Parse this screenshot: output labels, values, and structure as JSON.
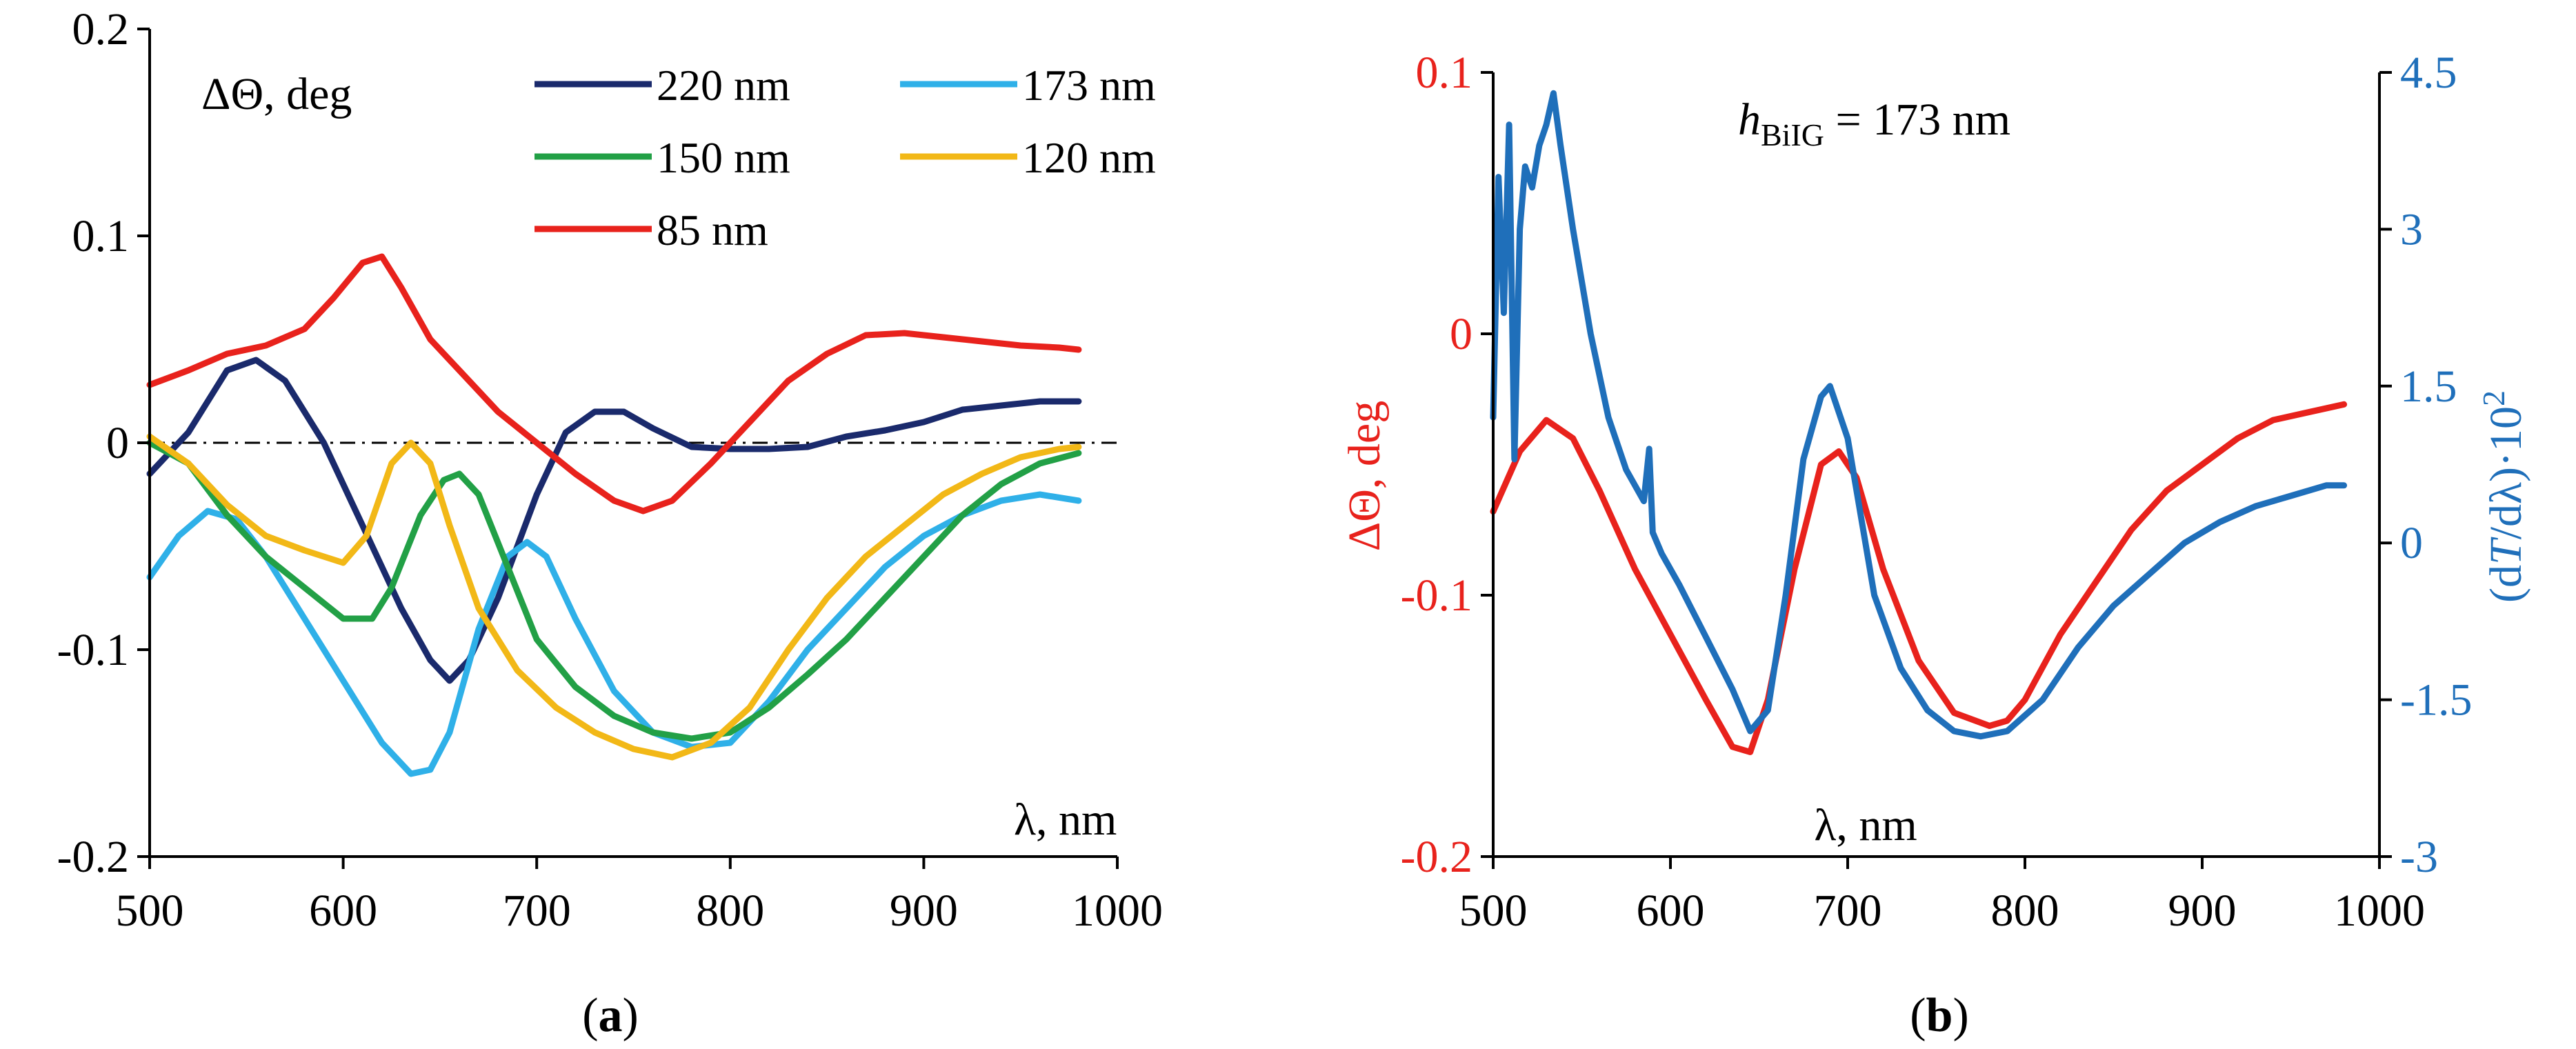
{
  "chart_data": [
    {
      "type": "line",
      "panel": "a",
      "caption_letter": "a",
      "ylabel": "ΔΘ, deg",
      "xlabel": "λ, nm",
      "xlim": [
        500,
        1000
      ],
      "ylim": [
        -0.2,
        0.2
      ],
      "xticks": [
        "500",
        "600",
        "700",
        "800",
        "900",
        "1000"
      ],
      "xtick_values": [
        500,
        600,
        700,
        800,
        900,
        1000
      ],
      "yticks": [
        "0.2",
        "0.1",
        "0",
        "-0.1",
        "-0.2"
      ],
      "ytick_values": [
        0.2,
        0.1,
        0,
        -0.1,
        -0.2
      ],
      "zero_line": true,
      "series": [
        {
          "name": "220 nm",
          "color": "#1a2a6c",
          "x": [
            500,
            520,
            540,
            555,
            570,
            590,
            610,
            630,
            645,
            655,
            665,
            680,
            700,
            715,
            730,
            745,
            760,
            780,
            800,
            820,
            840,
            860,
            880,
            900,
            920,
            940,
            960,
            980
          ],
          "y": [
            -0.015,
            0.005,
            0.035,
            0.04,
            0.03,
            0.0,
            -0.04,
            -0.08,
            -0.105,
            -0.115,
            -0.105,
            -0.075,
            -0.025,
            0.005,
            0.015,
            0.015,
            0.007,
            -0.002,
            -0.003,
            -0.003,
            -0.002,
            0.003,
            0.006,
            0.01,
            0.016,
            0.018,
            0.02,
            0.02
          ]
        },
        {
          "name": "173 nm",
          "color": "#2fb0e8",
          "x": [
            500,
            515,
            530,
            545,
            560,
            580,
            600,
            620,
            635,
            645,
            655,
            670,
            685,
            695,
            705,
            720,
            740,
            760,
            780,
            800,
            820,
            840,
            860,
            880,
            900,
            920,
            940,
            960,
            980
          ],
          "y": [
            -0.065,
            -0.045,
            -0.033,
            -0.037,
            -0.055,
            -0.085,
            -0.115,
            -0.145,
            -0.16,
            -0.158,
            -0.14,
            -0.09,
            -0.055,
            -0.048,
            -0.055,
            -0.085,
            -0.12,
            -0.14,
            -0.147,
            -0.145,
            -0.125,
            -0.1,
            -0.08,
            -0.06,
            -0.045,
            -0.035,
            -0.028,
            -0.025,
            -0.028
          ]
        },
        {
          "name": "150 nm",
          "color": "#22a046",
          "x": [
            500,
            520,
            540,
            560,
            580,
            600,
            615,
            625,
            640,
            652,
            660,
            670,
            685,
            700,
            720,
            740,
            760,
            780,
            800,
            820,
            840,
            860,
            880,
            900,
            920,
            940,
            960,
            980
          ],
          "y": [
            0.0,
            -0.01,
            -0.035,
            -0.055,
            -0.07,
            -0.085,
            -0.085,
            -0.07,
            -0.035,
            -0.018,
            -0.015,
            -0.025,
            -0.06,
            -0.095,
            -0.118,
            -0.132,
            -0.14,
            -0.143,
            -0.14,
            -0.128,
            -0.112,
            -0.095,
            -0.075,
            -0.055,
            -0.035,
            -0.02,
            -0.01,
            -0.005
          ]
        },
        {
          "name": "120 nm",
          "color": "#f2b817",
          "x": [
            500,
            520,
            540,
            560,
            580,
            600,
            612,
            625,
            635,
            645,
            655,
            670,
            690,
            710,
            730,
            750,
            770,
            790,
            810,
            830,
            850,
            870,
            890,
            910,
            930,
            950,
            970,
            980
          ],
          "y": [
            0.003,
            -0.01,
            -0.03,
            -0.045,
            -0.052,
            -0.058,
            -0.045,
            -0.01,
            0.0,
            -0.01,
            -0.04,
            -0.08,
            -0.11,
            -0.128,
            -0.14,
            -0.148,
            -0.152,
            -0.145,
            -0.128,
            -0.1,
            -0.075,
            -0.055,
            -0.04,
            -0.025,
            -0.015,
            -0.007,
            -0.003,
            -0.002
          ]
        },
        {
          "name": "85 nm",
          "color": "#e8221c",
          "x": [
            500,
            520,
            540,
            560,
            580,
            595,
            610,
            620,
            630,
            645,
            660,
            680,
            700,
            720,
            740,
            755,
            770,
            790,
            810,
            830,
            850,
            870,
            890,
            910,
            930,
            950,
            970,
            980
          ],
          "y": [
            0.028,
            0.035,
            0.043,
            0.047,
            0.055,
            0.07,
            0.087,
            0.09,
            0.075,
            0.05,
            0.035,
            0.015,
            0.0,
            -0.015,
            -0.028,
            -0.033,
            -0.028,
            -0.01,
            0.01,
            0.03,
            0.043,
            0.052,
            0.053,
            0.051,
            0.049,
            0.047,
            0.046,
            0.045
          ]
        }
      ]
    },
    {
      "type": "line",
      "panel": "b",
      "caption_letter": "b",
      "annotation_italic": "h",
      "annotation_sub": "BiIG",
      "annotation_rest": " = 173 nm",
      "ylabel": "ΔΘ, deg",
      "ylabel_color": "#e8221c",
      "y2label_open": "(d",
      "y2label_T": "T",
      "y2label_mid": "/dλ)·10",
      "y2label_sup": "2",
      "y2label_color": "#1f6fba",
      "xlabel": "λ, nm",
      "xlim": [
        500,
        1000
      ],
      "ylim": [
        -0.2,
        0.1
      ],
      "y2lim": [
        -3,
        4.5
      ],
      "xticks": [
        "500",
        "600",
        "700",
        "800",
        "900",
        "1000"
      ],
      "xtick_values": [
        500,
        600,
        700,
        800,
        900,
        1000
      ],
      "yticks": [
        "0.1",
        "0",
        "-0.1",
        "-0.2"
      ],
      "ytick_values": [
        0.1,
        0,
        -0.1,
        -0.2
      ],
      "y2ticks": [
        "4.5",
        "3",
        "1.5",
        "0",
        "-1.5",
        "-3"
      ],
      "y2tick_values": [
        4.5,
        3,
        1.5,
        0,
        -1.5,
        -3
      ],
      "series": [
        {
          "name": "ΔΘ",
          "axis": "left",
          "color": "#e8221c",
          "x": [
            500,
            515,
            530,
            545,
            560,
            580,
            600,
            620,
            635,
            645,
            655,
            670,
            685,
            695,
            705,
            720,
            740,
            760,
            780,
            790,
            800,
            820,
            840,
            860,
            880,
            900,
            920,
            940,
            960,
            980
          ],
          "y": [
            -0.068,
            -0.045,
            -0.033,
            -0.04,
            -0.06,
            -0.09,
            -0.115,
            -0.14,
            -0.158,
            -0.16,
            -0.14,
            -0.09,
            -0.05,
            -0.045,
            -0.055,
            -0.09,
            -0.125,
            -0.145,
            -0.15,
            -0.148,
            -0.14,
            -0.115,
            -0.095,
            -0.075,
            -0.06,
            -0.05,
            -0.04,
            -0.033,
            -0.03,
            -0.027
          ]
        },
        {
          "name": "dT/dλ·10²",
          "axis": "right",
          "color": "#1f6fba",
          "x": [
            500,
            503,
            506,
            509,
            512,
            515,
            518,
            522,
            526,
            530,
            534,
            538,
            545,
            555,
            565,
            575,
            585,
            588,
            590,
            595,
            605,
            620,
            635,
            645,
            655,
            665,
            675,
            685,
            690,
            700,
            715,
            730,
            745,
            760,
            775,
            790,
            810,
            830,
            850,
            870,
            890,
            910,
            930,
            950,
            970,
            980
          ],
          "y": [
            1.2,
            3.5,
            2.2,
            4.0,
            0.8,
            3.0,
            3.6,
            3.4,
            3.8,
            4.0,
            4.3,
            3.8,
            3.0,
            2.0,
            1.2,
            0.7,
            0.4,
            0.9,
            0.1,
            -0.1,
            -0.4,
            -0.9,
            -1.4,
            -1.8,
            -1.6,
            -0.5,
            0.8,
            1.4,
            1.5,
            1.0,
            -0.5,
            -1.2,
            -1.6,
            -1.8,
            -1.85,
            -1.8,
            -1.5,
            -1.0,
            -0.6,
            -0.3,
            0.0,
            0.2,
            0.35,
            0.45,
            0.55,
            0.55
          ]
        }
      ]
    }
  ]
}
